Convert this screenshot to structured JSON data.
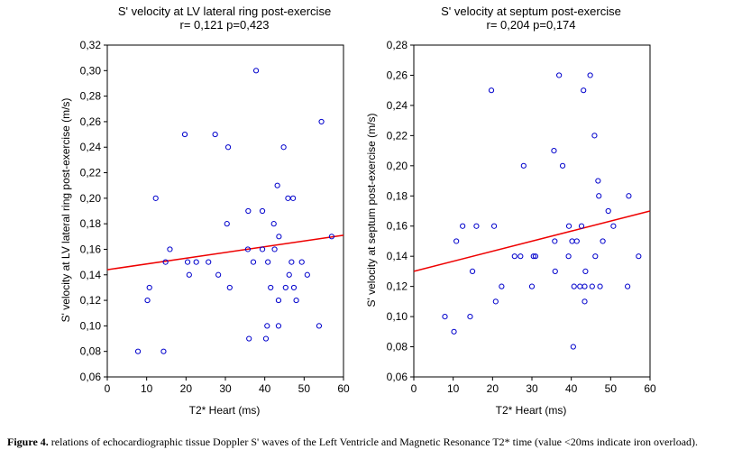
{
  "chart_data": [
    {
      "type": "scatter",
      "title": "S' velocity at LV lateral ring post-exercise",
      "subtitle": "r= 0,121 p=0,423",
      "xlabel": "T2* Heart (ms)",
      "ylabel": "S' velocity at LV lateral ring post-exercise (m/s)",
      "xlim": [
        0,
        60
      ],
      "ylim": [
        0.06,
        0.32
      ],
      "x_ticks": [
        "0",
        "10",
        "20",
        "30",
        "40",
        "50",
        "60"
      ],
      "y_ticks": [
        "0,06",
        "0,08",
        "0,10",
        "0,12",
        "0,14",
        "0,16",
        "0,18",
        "0,20",
        "0,22",
        "0,24",
        "0,26",
        "0,28",
        "0,30",
        "0,32"
      ],
      "grid": false,
      "regression_line": {
        "x": [
          0,
          60
        ],
        "y": [
          0.144,
          0.171
        ]
      },
      "points": [
        {
          "x": 7.8,
          "y": 0.08
        },
        {
          "x": 10.2,
          "y": 0.12
        },
        {
          "x": 10.7,
          "y": 0.13
        },
        {
          "x": 12.3,
          "y": 0.2
        },
        {
          "x": 14.3,
          "y": 0.08
        },
        {
          "x": 14.8,
          "y": 0.15
        },
        {
          "x": 15.9,
          "y": 0.16
        },
        {
          "x": 19.7,
          "y": 0.25
        },
        {
          "x": 20.4,
          "y": 0.15
        },
        {
          "x": 20.8,
          "y": 0.14
        },
        {
          "x": 22.6,
          "y": 0.15
        },
        {
          "x": 25.7,
          "y": 0.15
        },
        {
          "x": 27.4,
          "y": 0.25
        },
        {
          "x": 28.2,
          "y": 0.14
        },
        {
          "x": 30.4,
          "y": 0.18
        },
        {
          "x": 30.7,
          "y": 0.24
        },
        {
          "x": 31.1,
          "y": 0.13
        },
        {
          "x": 35.7,
          "y": 0.16
        },
        {
          "x": 35.8,
          "y": 0.19
        },
        {
          "x": 36.0,
          "y": 0.09
        },
        {
          "x": 37.1,
          "y": 0.15
        },
        {
          "x": 37.8,
          "y": 0.3
        },
        {
          "x": 39.4,
          "y": 0.19
        },
        {
          "x": 39.4,
          "y": 0.16
        },
        {
          "x": 40.3,
          "y": 0.09
        },
        {
          "x": 40.6,
          "y": 0.1
        },
        {
          "x": 40.8,
          "y": 0.15
        },
        {
          "x": 41.5,
          "y": 0.13
        },
        {
          "x": 42.3,
          "y": 0.18
        },
        {
          "x": 42.5,
          "y": 0.16
        },
        {
          "x": 43.2,
          "y": 0.21
        },
        {
          "x": 43.5,
          "y": 0.12
        },
        {
          "x": 43.5,
          "y": 0.1
        },
        {
          "x": 43.6,
          "y": 0.17
        },
        {
          "x": 44.8,
          "y": 0.24
        },
        {
          "x": 45.3,
          "y": 0.13
        },
        {
          "x": 45.9,
          "y": 0.2
        },
        {
          "x": 46.2,
          "y": 0.14
        },
        {
          "x": 46.8,
          "y": 0.15
        },
        {
          "x": 47.2,
          "y": 0.2
        },
        {
          "x": 47.4,
          "y": 0.13
        },
        {
          "x": 48.0,
          "y": 0.12
        },
        {
          "x": 49.4,
          "y": 0.15
        },
        {
          "x": 50.8,
          "y": 0.14
        },
        {
          "x": 53.8,
          "y": 0.1
        },
        {
          "x": 54.4,
          "y": 0.26
        },
        {
          "x": 57.0,
          "y": 0.17
        }
      ]
    },
    {
      "type": "scatter",
      "title": "S' velocity at septum post-exercise",
      "subtitle": "r= 0,204 p=0,174",
      "xlabel": "T2* Heart (ms)",
      "ylabel": "S' velocity at septum post-exercise (m/s)",
      "xlim": [
        0,
        60
      ],
      "ylim": [
        0.06,
        0.28
      ],
      "x_ticks": [
        "0",
        "10",
        "20",
        "30",
        "40",
        "50",
        "60"
      ],
      "y_ticks": [
        "0,06",
        "0,08",
        "0,10",
        "0,12",
        "0,14",
        "0,16",
        "0,18",
        "0,20",
        "0,22",
        "0,24",
        "0,26",
        "0,28"
      ],
      "grid": false,
      "regression_line": {
        "x": [
          0,
          60
        ],
        "y": [
          0.13,
          0.17
        ]
      },
      "points": [
        {
          "x": 7.9,
          "y": 0.1
        },
        {
          "x": 10.2,
          "y": 0.09
        },
        {
          "x": 10.8,
          "y": 0.15
        },
        {
          "x": 12.4,
          "y": 0.16
        },
        {
          "x": 14.3,
          "y": 0.1
        },
        {
          "x": 14.9,
          "y": 0.13
        },
        {
          "x": 15.9,
          "y": 0.16
        },
        {
          "x": 19.7,
          "y": 0.25
        },
        {
          "x": 20.4,
          "y": 0.16
        },
        {
          "x": 20.8,
          "y": 0.11
        },
        {
          "x": 22.3,
          "y": 0.12
        },
        {
          "x": 25.6,
          "y": 0.14
        },
        {
          "x": 27.1,
          "y": 0.14
        },
        {
          "x": 27.9,
          "y": 0.2
        },
        {
          "x": 30.0,
          "y": 0.12
        },
        {
          "x": 30.4,
          "y": 0.14
        },
        {
          "x": 30.9,
          "y": 0.14
        },
        {
          "x": 35.6,
          "y": 0.21
        },
        {
          "x": 35.8,
          "y": 0.15
        },
        {
          "x": 35.9,
          "y": 0.13
        },
        {
          "x": 36.9,
          "y": 0.26
        },
        {
          "x": 37.8,
          "y": 0.2
        },
        {
          "x": 39.3,
          "y": 0.14
        },
        {
          "x": 39.4,
          "y": 0.16
        },
        {
          "x": 40.2,
          "y": 0.15
        },
        {
          "x": 40.5,
          "y": 0.08
        },
        {
          "x": 40.7,
          "y": 0.12
        },
        {
          "x": 41.4,
          "y": 0.15
        },
        {
          "x": 42.2,
          "y": 0.12
        },
        {
          "x": 42.6,
          "y": 0.16
        },
        {
          "x": 43.1,
          "y": 0.25
        },
        {
          "x": 43.4,
          "y": 0.12
        },
        {
          "x": 43.4,
          "y": 0.11
        },
        {
          "x": 43.6,
          "y": 0.13
        },
        {
          "x": 44.8,
          "y": 0.26
        },
        {
          "x": 45.3,
          "y": 0.12
        },
        {
          "x": 45.9,
          "y": 0.22
        },
        {
          "x": 46.1,
          "y": 0.14
        },
        {
          "x": 46.8,
          "y": 0.19
        },
        {
          "x": 47.0,
          "y": 0.18
        },
        {
          "x": 47.3,
          "y": 0.12
        },
        {
          "x": 48.0,
          "y": 0.15
        },
        {
          "x": 49.4,
          "y": 0.17
        },
        {
          "x": 50.7,
          "y": 0.16
        },
        {
          "x": 54.3,
          "y": 0.12
        },
        {
          "x": 54.6,
          "y": 0.18
        },
        {
          "x": 57.1,
          "y": 0.14
        }
      ]
    }
  ],
  "caption": {
    "label": "Figure 4.",
    "text": " relations of echocardiographic tissue Doppler S' waves of the Left Ventricle and Magnetic Resonance T2* time (value <20ms indicate iron overload)."
  },
  "colors": {
    "marker": "#0000cc",
    "regression": "#ee0000",
    "axis": "#000000"
  }
}
